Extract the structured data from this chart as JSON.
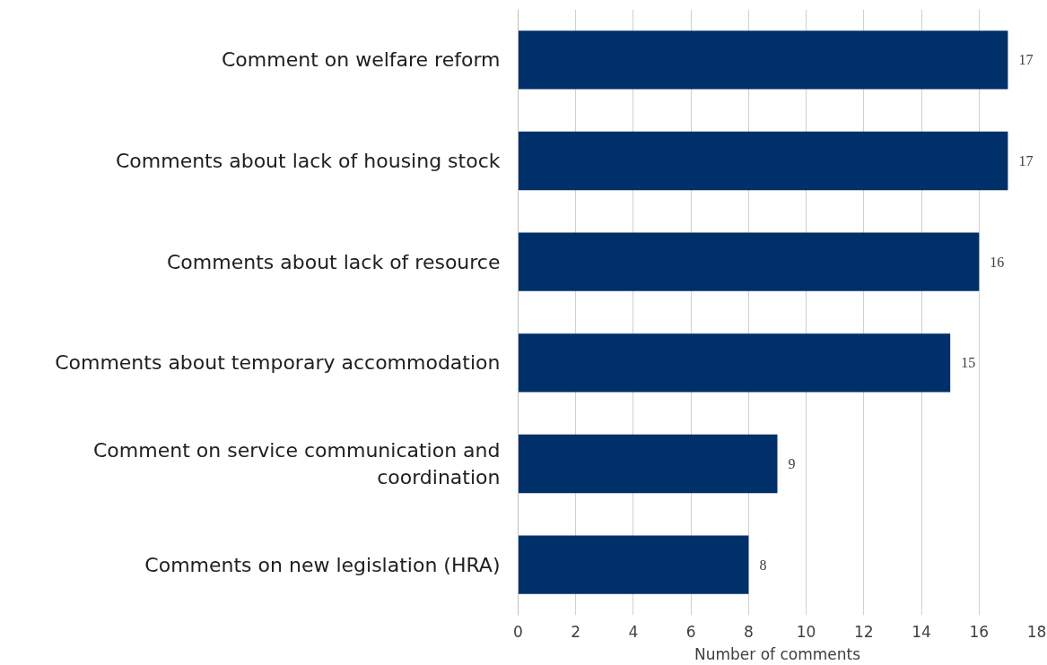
{
  "chart_data": {
    "type": "bar",
    "orientation": "horizontal",
    "xlabel": "Number of comments",
    "categories": [
      "Comment on welfare reform",
      "Comments about lack of housing stock",
      "Comments about lack of resource",
      "Comments about temporary accommodation",
      "Comment on service communication and coordination",
      "Comments on new legislation (HRA)"
    ],
    "values": [
      17,
      17,
      16,
      15,
      9,
      8
    ],
    "color": "#003069",
    "xlim": [
      0,
      18
    ],
    "xticks": [
      0,
      2,
      4,
      6,
      8,
      10,
      12,
      14,
      16,
      18
    ],
    "grid": "x",
    "data_labels": true
  }
}
